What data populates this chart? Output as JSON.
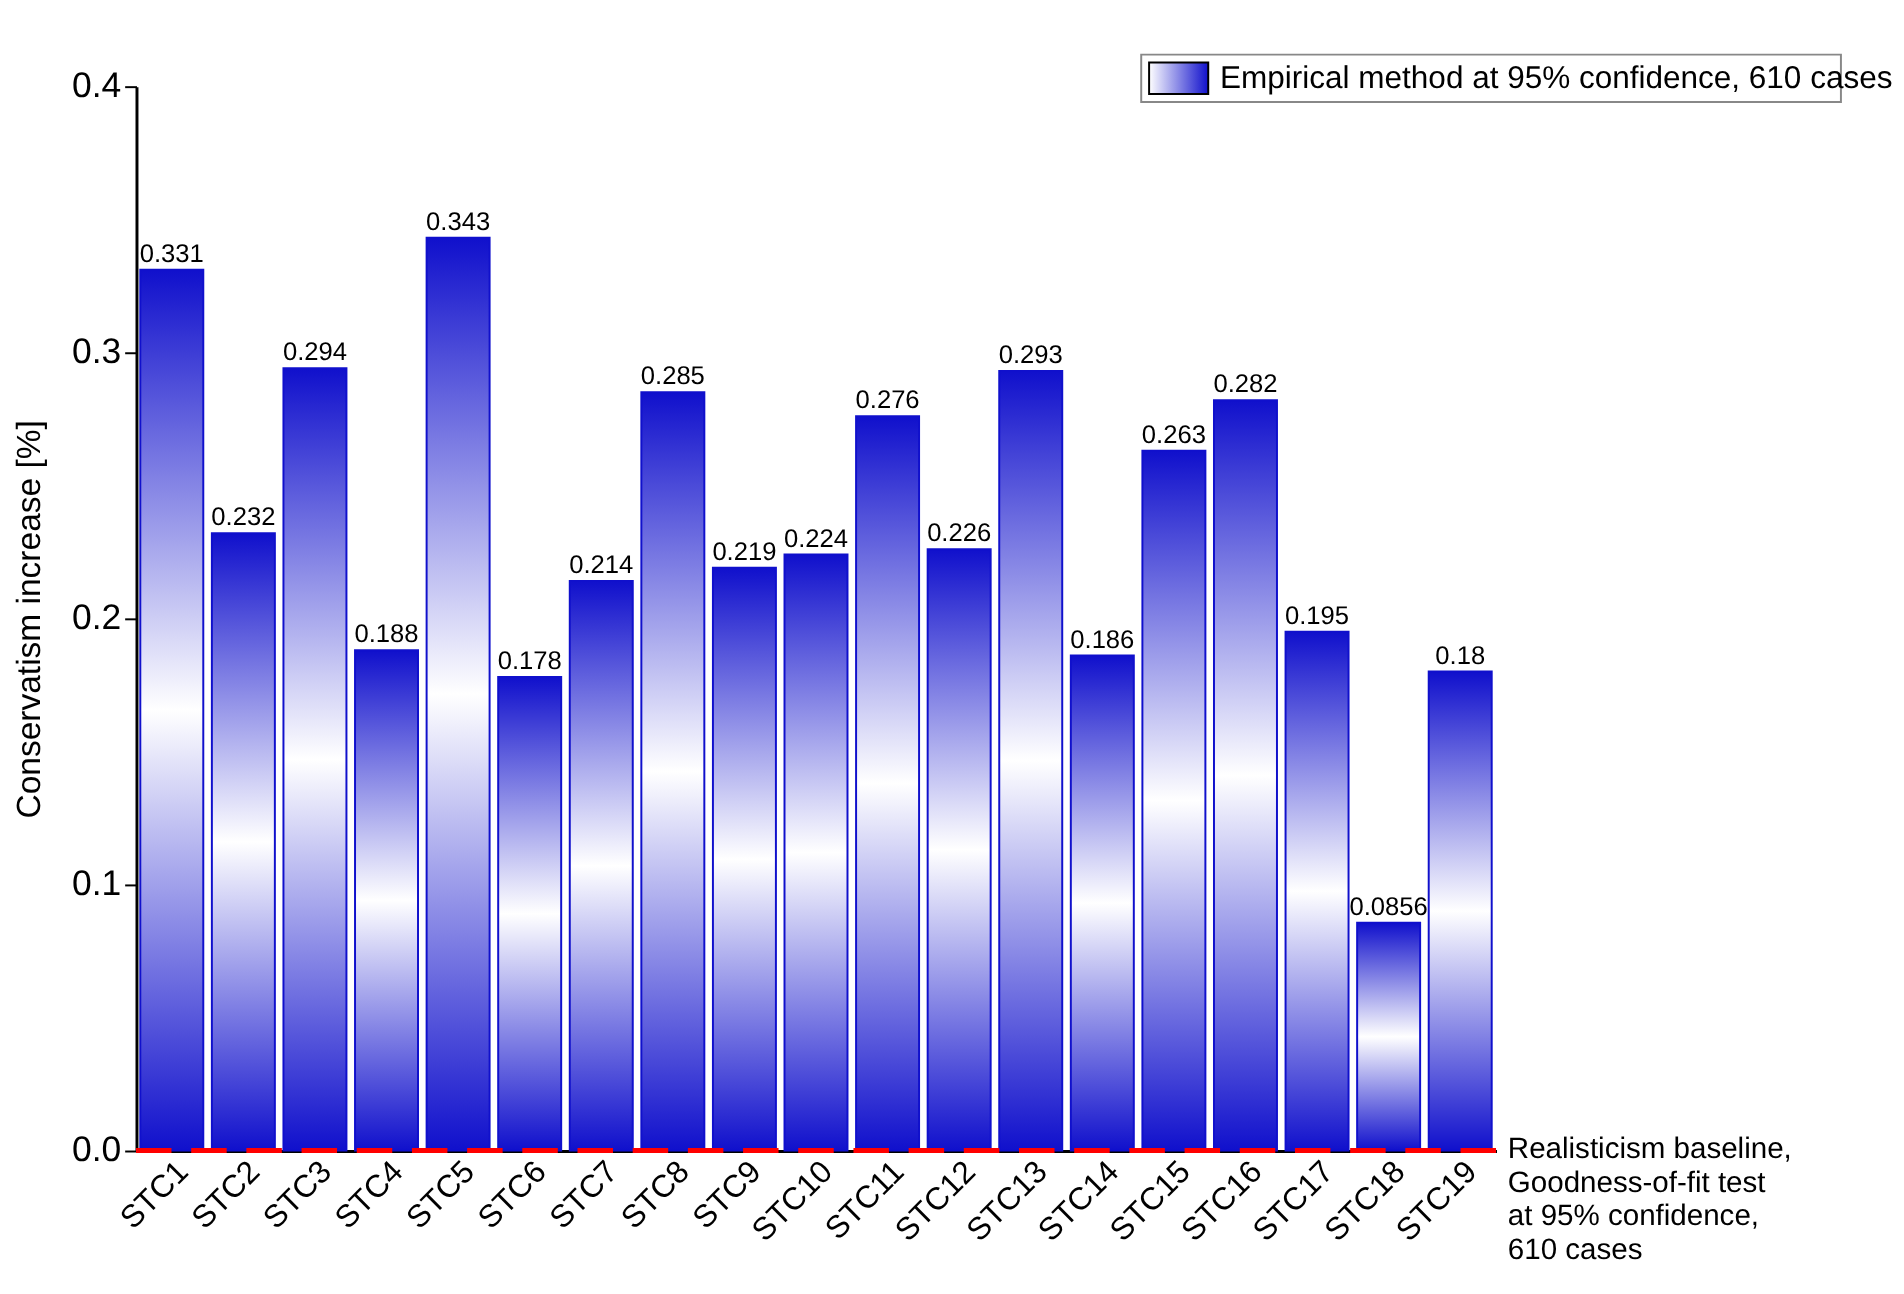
{
  "chart_data": {
    "type": "bar",
    "ylabel": "Conservatism increase [%]",
    "categories": [
      "STC1",
      "STC2",
      "STC3",
      "STC4",
      "STC5",
      "STC6",
      "STC7",
      "STC8",
      "STC9",
      "STC10",
      "STC11",
      "STC12",
      "STC13",
      "STC14",
      "STC15",
      "STC16",
      "STC17",
      "STC18",
      "STC19"
    ],
    "series": [
      {
        "name": "Empirical method at 95% confidence, 610 cases",
        "color": "#1010cc",
        "values": [
          0.331,
          0.232,
          0.294,
          0.188,
          0.343,
          0.178,
          0.214,
          0.285,
          0.219,
          0.224,
          0.276,
          0.226,
          0.293,
          0.186,
          0.263,
          0.282,
          0.195,
          0.0856,
          0.18
        ]
      }
    ],
    "data_labels": true,
    "ylim": [
      0,
      0.4
    ],
    "yticks": [
      {
        "value": 0,
        "label": "0.0"
      },
      0.1,
      0.2,
      0.3,
      0.4
    ],
    "ref_lines": [
      {
        "axis": "y",
        "value": 0,
        "label": "Realisticism baseline,\nGoodness-of-fit test\nat 95% confidence,\n610 cases",
        "color": "#ff0000",
        "line_style": "dashed"
      }
    ],
    "legend": "top right",
    "grid": false
  }
}
